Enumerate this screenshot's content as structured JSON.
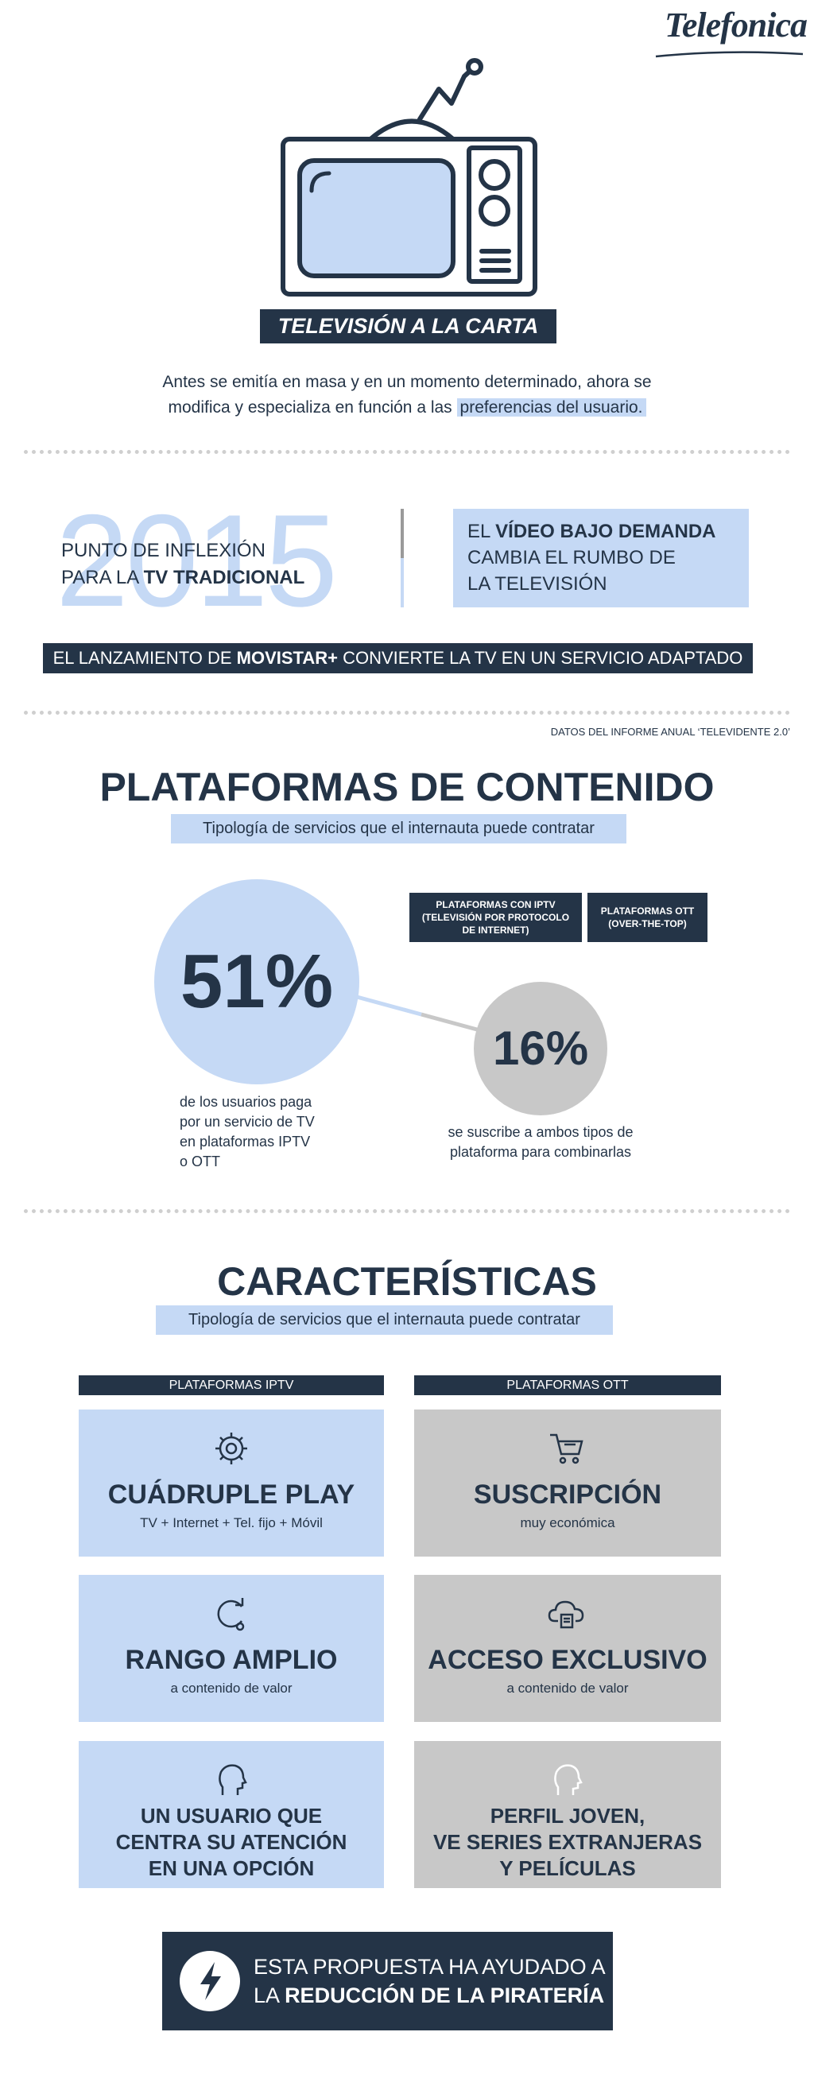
{
  "brand": "Telefonica",
  "hero": {
    "title": "TELEVISIÓN A LA CARTA",
    "intro_line1": "Antes se emitía en masa y en un momento determinado, ahora se",
    "intro_line2": "modifica y especializa en función a las",
    "intro_highlight": "preferencias del usuario."
  },
  "turning_point": {
    "year": "2015",
    "left_line1": "PUNTO DE INFLEXIÓN",
    "left_line2": "PARA LA",
    "left_bold": "TV TRADICIONAL",
    "box_pre": "EL",
    "box_bold": "VÍDEO BAJO DEMANDA",
    "box_line2": "CAMBIA EL RUMBO DE",
    "box_line3": "LA TELEVISIÓN",
    "banner_pre": "EL LANZAMIENTO DE",
    "banner_bold": "MOVISTAR+",
    "banner_post": "CONVIERTE LA TV EN UN SERVICIO ADAPTADO"
  },
  "platforms": {
    "source": "DATOS DEL INFORME ANUAL ‘TELEVIDENTE 2.0’",
    "title": "PLATAFORMAS DE CONTENIDO",
    "subtitle": "Tipología de servicios que el internauta puede contratar",
    "badges": [
      [
        "PLATAFORMAS CON IPTV",
        "(TELEVISIÓN  POR PROTOCOLO",
        "DE INTERNET)"
      ],
      [
        "PLATAFORMAS OTT",
        "(OVER-THE-TOP)"
      ]
    ],
    "stats": [
      {
        "value": "51%",
        "caption": [
          "de los usuarios paga",
          "por un servicio de TV",
          "en plataformas IPTV",
          "o OTT"
        ]
      },
      {
        "value": "16%",
        "caption": [
          "se suscribe a ambos tipos de",
          "plataforma para combinarlas"
        ]
      }
    ]
  },
  "features": {
    "title": "CARACTERÍSTICAS",
    "subtitle": "Tipología de servicios que el internauta puede contratar",
    "columns": [
      {
        "header": "PLATAFORMAS IPTV",
        "cards": [
          {
            "title": "CUÁDRUPLE PLAY",
            "subtitle": "TV + Internet + Tel. fijo + Móvil"
          },
          {
            "title": "RANGO AMPLIO",
            "subtitle": "a contenido de valor"
          },
          {
            "lines": [
              "UN USUARIO QUE",
              "CENTRA SU ATENCIÓN",
              "EN UNA OPCIÓN"
            ]
          }
        ]
      },
      {
        "header": "PLATAFORMAS OTT",
        "cards": [
          {
            "title": "SUSCRIPCIÓN",
            "subtitle": "muy económica"
          },
          {
            "title": "ACCESO EXCLUSIVO",
            "subtitle": "a contenido de valor"
          },
          {
            "lines": [
              "PERFIL JOVEN,",
              "VE SERIES  EXTRANJERAS",
              "Y PELÍCULAS"
            ]
          }
        ]
      }
    ]
  },
  "footer": {
    "line1": "ESTA PROPUESTA HA AYUDADO A",
    "line2_pre": "LA",
    "line2_bold": "REDUCCIÓN DE LA PIRATERÍA"
  }
}
